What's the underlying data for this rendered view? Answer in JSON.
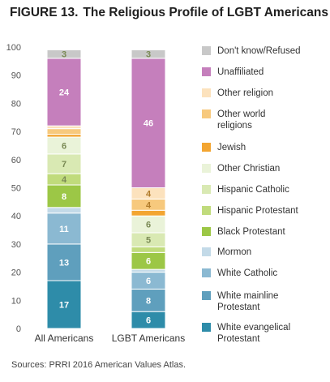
{
  "figure": {
    "number": "FIGURE 13.",
    "title": "The Religious Profile of LGBT Americans",
    "source": "Sources: PRRI 2016 American Values Atlas."
  },
  "chart_data": {
    "type": "bar",
    "stacked": true,
    "categories": [
      "All Americans",
      "LGBT Americans"
    ],
    "ylim": [
      0,
      100
    ],
    "yticks": [
      0,
      10,
      20,
      30,
      40,
      50,
      60,
      70,
      80,
      90,
      100
    ],
    "grid": false,
    "legend_position": "right",
    "series": [
      {
        "name": "White evangelical Protestant",
        "color": "#2e8ca9",
        "values": [
          17,
          6
        ],
        "labels": [
          "17",
          "6"
        ]
      },
      {
        "name": "White mainline Protestant",
        "color": "#5f9fbd",
        "values": [
          13,
          8
        ],
        "labels": [
          "13",
          "8"
        ]
      },
      {
        "name": "White Catholic",
        "color": "#8bb9d2",
        "values": [
          11,
          6
        ],
        "labels": [
          "11",
          "6"
        ]
      },
      {
        "name": "Mormon",
        "color": "#c3dae8",
        "values": [
          2,
          1
        ],
        "labels": [
          "",
          ""
        ]
      },
      {
        "name": "Black Protestant",
        "color": "#9cc746",
        "values": [
          8,
          6
        ],
        "labels": [
          "8",
          "6"
        ]
      },
      {
        "name": "Hispanic Protestant",
        "color": "#c0db7c",
        "values": [
          4,
          2
        ],
        "labels": [
          "4",
          ""
        ]
      },
      {
        "name": "Hispanic Catholic",
        "color": "#d9e9b3",
        "values": [
          7,
          5
        ],
        "labels": [
          "7",
          "5"
        ]
      },
      {
        "name": "Other Christian",
        "color": "#eaf3d9",
        "values": [
          6,
          6
        ],
        "labels": [
          "6",
          "6"
        ]
      },
      {
        "name": "Jewish",
        "color": "#f3a531",
        "values": [
          1,
          2
        ],
        "labels": [
          "",
          ""
        ]
      },
      {
        "name": "Other world religions",
        "color": "#f7c97d",
        "values": [
          2,
          4
        ],
        "labels": [
          "",
          "4"
        ]
      },
      {
        "name": "Other religion",
        "color": "#fce2bd",
        "values": [
          1,
          4
        ],
        "labels": [
          "",
          "4"
        ]
      },
      {
        "name": "Unaffiliated",
        "color": "#c57fbc",
        "values": [
          24,
          46
        ],
        "labels": [
          "24",
          "46"
        ]
      },
      {
        "name": "Don't know/Refused",
        "color": "#c8c8c8",
        "values": [
          3,
          3
        ],
        "labels": [
          "3",
          "3"
        ]
      }
    ]
  }
}
